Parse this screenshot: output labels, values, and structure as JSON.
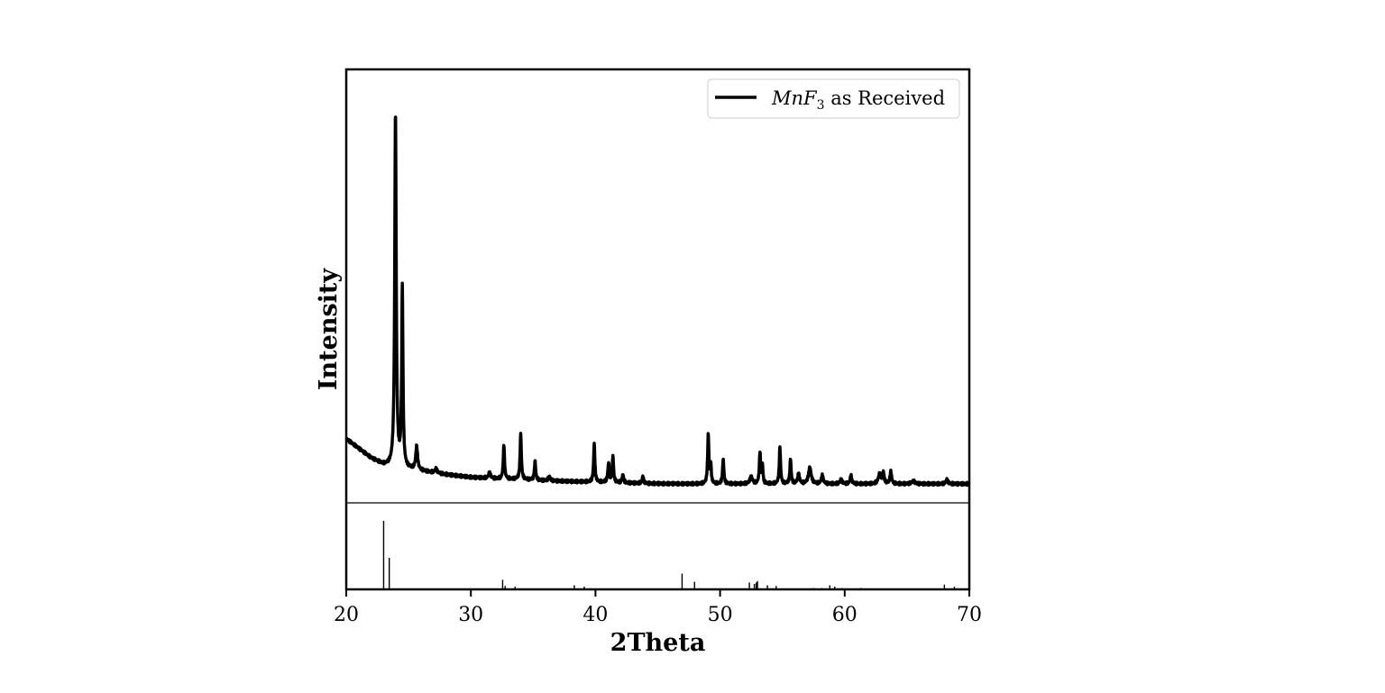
{
  "chart_data": {
    "type": "line",
    "xlabel": "2Theta",
    "ylabel": "Intensity",
    "xlim": [
      20,
      70
    ],
    "x_ticks": [
      "20",
      "30",
      "40",
      "50",
      "60",
      "70"
    ],
    "y_ticks_shown": false,
    "grid": false,
    "legend": {
      "placement": "top-right",
      "entries": [
        {
          "formula_main": "MnF",
          "formula_sub": "3",
          "suffix": " as Received"
        }
      ]
    },
    "baseline": {
      "y_intensity": 0
    },
    "series": [
      {
        "name": "MnF3 as Received",
        "color": "#000000",
        "background": [
          [
            20.0,
            42
          ],
          [
            21.0,
            35
          ],
          [
            22.0,
            28
          ],
          [
            23.0,
            23
          ],
          [
            23.5,
            22
          ],
          [
            25.0,
            20
          ],
          [
            26.5,
            18
          ],
          [
            28.0,
            16
          ],
          [
            30.0,
            14
          ],
          [
            32.0,
            13
          ],
          [
            34.0,
            12.5
          ],
          [
            36.0,
            11.5
          ],
          [
            38.0,
            11
          ],
          [
            40.0,
            10.5
          ],
          [
            42.0,
            10
          ],
          [
            44.0,
            9.5
          ],
          [
            46.0,
            9.3
          ],
          [
            48.0,
            9.2
          ],
          [
            50.0,
            9.2
          ],
          [
            55.0,
            9.2
          ],
          [
            60.0,
            9.2
          ],
          [
            65.0,
            9.2
          ],
          [
            70.0,
            9.2
          ]
        ],
        "peaks": [
          {
            "x": 23.95,
            "height": 258,
            "width": 0.14
          },
          {
            "x": 24.5,
            "height": 130,
            "width": 0.12
          },
          {
            "x": 25.65,
            "height": 17,
            "width": 0.18
          },
          {
            "x": 27.2,
            "height": 3,
            "width": 0.2
          },
          {
            "x": 31.5,
            "height": 4,
            "width": 0.2
          },
          {
            "x": 32.65,
            "height": 25,
            "width": 0.12
          },
          {
            "x": 34.0,
            "height": 33,
            "width": 0.12
          },
          {
            "x": 35.15,
            "height": 14,
            "width": 0.12
          },
          {
            "x": 36.3,
            "height": 3,
            "width": 0.2
          },
          {
            "x": 39.9,
            "height": 28,
            "width": 0.12
          },
          {
            "x": 41.05,
            "height": 14,
            "width": 0.14
          },
          {
            "x": 41.4,
            "height": 19,
            "width": 0.12
          },
          {
            "x": 42.2,
            "height": 6,
            "width": 0.14
          },
          {
            "x": 43.8,
            "height": 5,
            "width": 0.14
          },
          {
            "x": 49.05,
            "height": 36,
            "width": 0.12
          },
          {
            "x": 49.25,
            "height": 14,
            "width": 0.1
          },
          {
            "x": 50.25,
            "height": 18,
            "width": 0.12
          },
          {
            "x": 52.5,
            "height": 5,
            "width": 0.25
          },
          {
            "x": 53.2,
            "height": 23,
            "width": 0.12
          },
          {
            "x": 53.4,
            "height": 13,
            "width": 0.1
          },
          {
            "x": 54.8,
            "height": 27,
            "width": 0.12
          },
          {
            "x": 55.65,
            "height": 18,
            "width": 0.12
          },
          {
            "x": 56.3,
            "height": 7,
            "width": 0.18
          },
          {
            "x": 57.2,
            "height": 12,
            "width": 0.25
          },
          {
            "x": 58.2,
            "height": 6,
            "width": 0.18
          },
          {
            "x": 59.7,
            "height": 3,
            "width": 0.2
          },
          {
            "x": 60.5,
            "height": 6,
            "width": 0.15
          },
          {
            "x": 62.8,
            "height": 7,
            "width": 0.25
          },
          {
            "x": 63.1,
            "height": 8,
            "width": 0.15
          },
          {
            "x": 63.7,
            "height": 9,
            "width": 0.15
          },
          {
            "x": 65.5,
            "height": 2,
            "width": 0.3
          },
          {
            "x": 68.2,
            "height": 3,
            "width": 0.2
          }
        ]
      }
    ],
    "reference_pattern": {
      "max_intensity": 100,
      "sticks": [
        {
          "x": 23.0,
          "intensity": 100
        },
        {
          "x": 23.45,
          "intensity": 46
        },
        {
          "x": 32.55,
          "intensity": 14
        },
        {
          "x": 32.75,
          "intensity": 5
        },
        {
          "x": 33.55,
          "intensity": 4
        },
        {
          "x": 38.3,
          "intensity": 6
        },
        {
          "x": 39.1,
          "intensity": 4
        },
        {
          "x": 46.95,
          "intensity": 23
        },
        {
          "x": 47.95,
          "intensity": 11
        },
        {
          "x": 52.35,
          "intensity": 10
        },
        {
          "x": 52.75,
          "intensity": 8
        },
        {
          "x": 52.9,
          "intensity": 10
        },
        {
          "x": 53.0,
          "intensity": 12
        },
        {
          "x": 53.8,
          "intensity": 6
        },
        {
          "x": 54.5,
          "intensity": 5
        },
        {
          "x": 57.5,
          "intensity": 2
        },
        {
          "x": 58.2,
          "intensity": 2
        },
        {
          "x": 58.8,
          "intensity": 6
        },
        {
          "x": 59.2,
          "intensity": 4
        },
        {
          "x": 59.8,
          "intensity": 2
        },
        {
          "x": 61.3,
          "intensity": 2
        },
        {
          "x": 68.0,
          "intensity": 7
        },
        {
          "x": 68.8,
          "intensity": 4
        }
      ]
    }
  }
}
